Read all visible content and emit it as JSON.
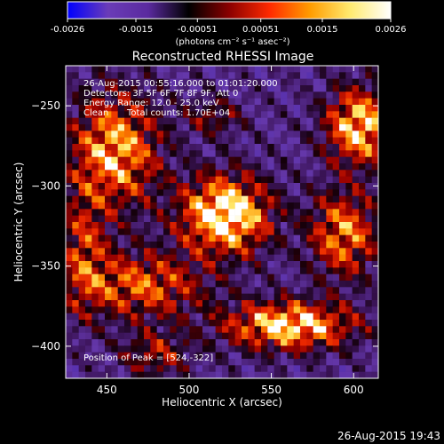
{
  "colorbar": {
    "ticks": [
      "-0.0026",
      "-0.0015",
      "-0.00051",
      "0.00051",
      "0.0015",
      "0.0026"
    ],
    "tick_values": [
      -0.0026,
      -0.0015,
      -0.00051,
      0.00051,
      0.0015,
      0.0026
    ],
    "units_label": "(photons cm⁻² s⁻¹ asec⁻²)",
    "colormap_stops": [
      "#0000ff",
      "#6a3cb8",
      "#5a2a9e",
      "#000000",
      "#8a0000",
      "#ff2a00",
      "#ff9c00",
      "#ffea70",
      "#ffffff"
    ]
  },
  "chart_data": {
    "type": "heatmap",
    "title": "Reconstructed RHESSI Image",
    "xlabel": "Heliocentric X (arcsec)",
    "ylabel": "Heliocentric Y (arcsec)",
    "xlim": [
      425,
      615
    ],
    "ylim": [
      -420,
      -225
    ],
    "xticks": [
      450,
      500,
      550,
      600
    ],
    "yticks": [
      -250,
      -300,
      -350,
      -400
    ],
    "xtick_labels": [
      "450",
      "500",
      "550",
      "600"
    ],
    "ytick_labels": [
      "−250",
      "−300",
      "−350",
      "−400"
    ],
    "info_lines": [
      "26-Aug-2015 00:55:16.000 to 01:01:20.000",
      "Detectors: 3F 5F 6F 7F 8F 9F, Att 0",
      "Energy Range: 12.0 - 25.0 keV"
    ],
    "clean_label": "Clean",
    "total_counts_label": "Total counts: 1.70E+04",
    "peak_label": "Position of Peak = [524,-322]",
    "peak": [
      524,
      -322
    ],
    "sources": [
      {
        "x": 522,
        "y": -318,
        "amp": 1.0,
        "sx": 18,
        "sy": 16
      },
      {
        "x": 455,
        "y": -278,
        "amp": 0.72,
        "sx": 18,
        "sy": 24
      },
      {
        "x": 561,
        "y": -387,
        "amp": 0.85,
        "sx": 26,
        "sy": 10
      },
      {
        "x": 604,
        "y": -263,
        "amp": 0.8,
        "sx": 14,
        "sy": 16
      },
      {
        "x": 594,
        "y": -330,
        "amp": 0.62,
        "sx": 14,
        "sy": 18
      },
      {
        "x": 471,
        "y": -362,
        "amp": 0.55,
        "sx": 26,
        "sy": 14
      },
      {
        "x": 436,
        "y": -340,
        "amp": 0.42,
        "sx": 10,
        "sy": 26
      },
      {
        "x": 515,
        "y": -257,
        "amp": 0.28,
        "sx": 12,
        "sy": 8
      },
      {
        "x": 480,
        "y": -405,
        "amp": 0.35,
        "sx": 14,
        "sy": 10
      }
    ]
  },
  "footer": {
    "timestamp": "26-Aug-2015 19:43"
  }
}
